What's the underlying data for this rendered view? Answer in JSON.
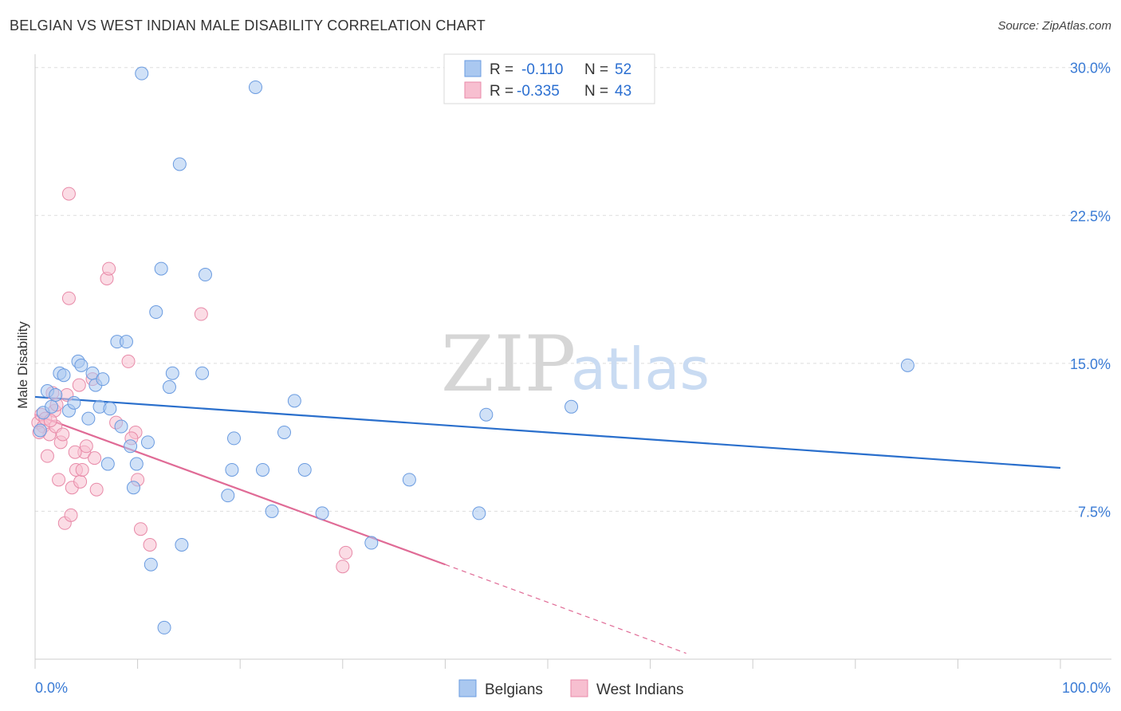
{
  "header": {
    "title": "BELGIAN VS WEST INDIAN MALE DISABILITY CORRELATION CHART",
    "source": "Source: ZipAtlas.com"
  },
  "watermark": {
    "zip": "ZIP",
    "atlas": "atlas"
  },
  "legend": {
    "rows": [
      {
        "r_label": "R =",
        "r_value": "-0.110",
        "n_label": "N =",
        "n_value": "52"
      },
      {
        "r_label": "R =",
        "r_value": "-0.335",
        "n_label": "N =",
        "n_value": "43"
      }
    ]
  },
  "bottom_legend": {
    "belgians": "Belgians",
    "west_indians": "West Indians"
  },
  "colors": {
    "belgian_fill": "#aac8f0",
    "belgian_stroke": "#6a9be0",
    "belgian_line": "#2a6fcc",
    "westindian_fill": "#f7bfd0",
    "westindian_stroke": "#e88aa8",
    "westindian_line": "#e06b96",
    "tick_label": "#3a7bd5",
    "grid": "#dddddd"
  },
  "chart_data": {
    "type": "scatter",
    "title": "BELGIAN VS WEST INDIAN MALE DISABILITY CORRELATION CHART",
    "xlabel": "",
    "ylabel": "Male Disability",
    "xlim": [
      0,
      100
    ],
    "ylim": [
      0,
      31
    ],
    "x_tick_labels": [
      "0.0%",
      "100.0%"
    ],
    "y_ticks": [
      7.5,
      15.0,
      22.5,
      30.0
    ],
    "y_tick_labels": [
      "7.5%",
      "15.0%",
      "22.5%",
      "30.0%"
    ],
    "grid": "horizontal dashed",
    "legend_position": "top-center",
    "series": [
      {
        "name": "Belgians",
        "r": -0.11,
        "n": 52,
        "trend": {
          "x": [
            0,
            100
          ],
          "y": [
            13.3,
            9.7
          ]
        },
        "points": [
          [
            0.5,
            11.6
          ],
          [
            0.8,
            12.5
          ],
          [
            1.2,
            13.6
          ],
          [
            1.6,
            12.8
          ],
          [
            2.0,
            13.4
          ],
          [
            2.4,
            14.5
          ],
          [
            2.8,
            14.4
          ],
          [
            3.3,
            12.6
          ],
          [
            3.8,
            13.0
          ],
          [
            4.2,
            15.1
          ],
          [
            4.5,
            14.9
          ],
          [
            5.2,
            12.2
          ],
          [
            5.6,
            14.5
          ],
          [
            5.9,
            13.9
          ],
          [
            6.3,
            12.8
          ],
          [
            6.6,
            14.2
          ],
          [
            7.3,
            12.7
          ],
          [
            7.1,
            9.9
          ],
          [
            8.0,
            16.1
          ],
          [
            8.4,
            11.8
          ],
          [
            8.9,
            16.1
          ],
          [
            9.3,
            10.8
          ],
          [
            9.6,
            8.7
          ],
          [
            9.9,
            9.9
          ],
          [
            10.4,
            29.7
          ],
          [
            11.0,
            11.0
          ],
          [
            11.3,
            4.8
          ],
          [
            11.8,
            17.6
          ],
          [
            12.3,
            19.8
          ],
          [
            12.6,
            1.6
          ],
          [
            13.1,
            13.8
          ],
          [
            13.4,
            14.5
          ],
          [
            14.1,
            25.1
          ],
          [
            14.3,
            5.8
          ],
          [
            16.3,
            14.5
          ],
          [
            16.6,
            19.5
          ],
          [
            18.8,
            8.3
          ],
          [
            19.2,
            9.6
          ],
          [
            19.4,
            11.2
          ],
          [
            21.5,
            29.0
          ],
          [
            22.2,
            9.6
          ],
          [
            23.1,
            7.5
          ],
          [
            24.3,
            11.5
          ],
          [
            25.3,
            13.1
          ],
          [
            26.3,
            9.6
          ],
          [
            28.0,
            7.4
          ],
          [
            32.8,
            5.9
          ],
          [
            36.5,
            9.1
          ],
          [
            43.3,
            7.4
          ],
          [
            44.0,
            12.4
          ],
          [
            52.3,
            12.8
          ],
          [
            85.1,
            14.9
          ]
        ]
      },
      {
        "name": "West Indians",
        "r": -0.335,
        "n": 43,
        "trend": {
          "x": [
            0,
            40
          ],
          "y": [
            12.4,
            4.8
          ]
        },
        "trend_dashed": {
          "x": [
            40,
            63.5
          ],
          "y": [
            4.8,
            0.3
          ]
        },
        "points": [
          [
            0.3,
            12.0
          ],
          [
            0.6,
            12.4
          ],
          [
            0.8,
            11.8
          ],
          [
            1.0,
            12.2
          ],
          [
            1.2,
            10.3
          ],
          [
            1.4,
            11.4
          ],
          [
            1.7,
            13.5
          ],
          [
            1.9,
            12.6
          ],
          [
            2.0,
            11.8
          ],
          [
            2.3,
            9.1
          ],
          [
            2.5,
            11.0
          ],
          [
            2.7,
            11.4
          ],
          [
            2.9,
            6.9
          ],
          [
            3.1,
            13.4
          ],
          [
            3.3,
            18.3
          ],
          [
            3.5,
            7.3
          ],
          [
            3.3,
            23.6
          ],
          [
            3.6,
            8.7
          ],
          [
            4.0,
            9.6
          ],
          [
            4.3,
            13.9
          ],
          [
            4.4,
            9.0
          ],
          [
            4.6,
            9.6
          ],
          [
            4.8,
            10.5
          ],
          [
            5.0,
            10.8
          ],
          [
            5.6,
            14.2
          ],
          [
            5.8,
            10.2
          ],
          [
            6.0,
            8.6
          ],
          [
            7.0,
            19.3
          ],
          [
            7.2,
            19.8
          ],
          [
            7.9,
            12.0
          ],
          [
            9.1,
            15.1
          ],
          [
            9.8,
            11.5
          ],
          [
            10.0,
            9.1
          ],
          [
            10.3,
            6.6
          ],
          [
            11.2,
            5.8
          ],
          [
            16.2,
            17.5
          ],
          [
            30.0,
            4.7
          ],
          [
            30.3,
            5.4
          ],
          [
            0.4,
            11.5
          ],
          [
            1.5,
            12.1
          ],
          [
            2.1,
            12.9
          ],
          [
            3.9,
            10.5
          ],
          [
            9.4,
            11.2
          ]
        ]
      }
    ]
  }
}
